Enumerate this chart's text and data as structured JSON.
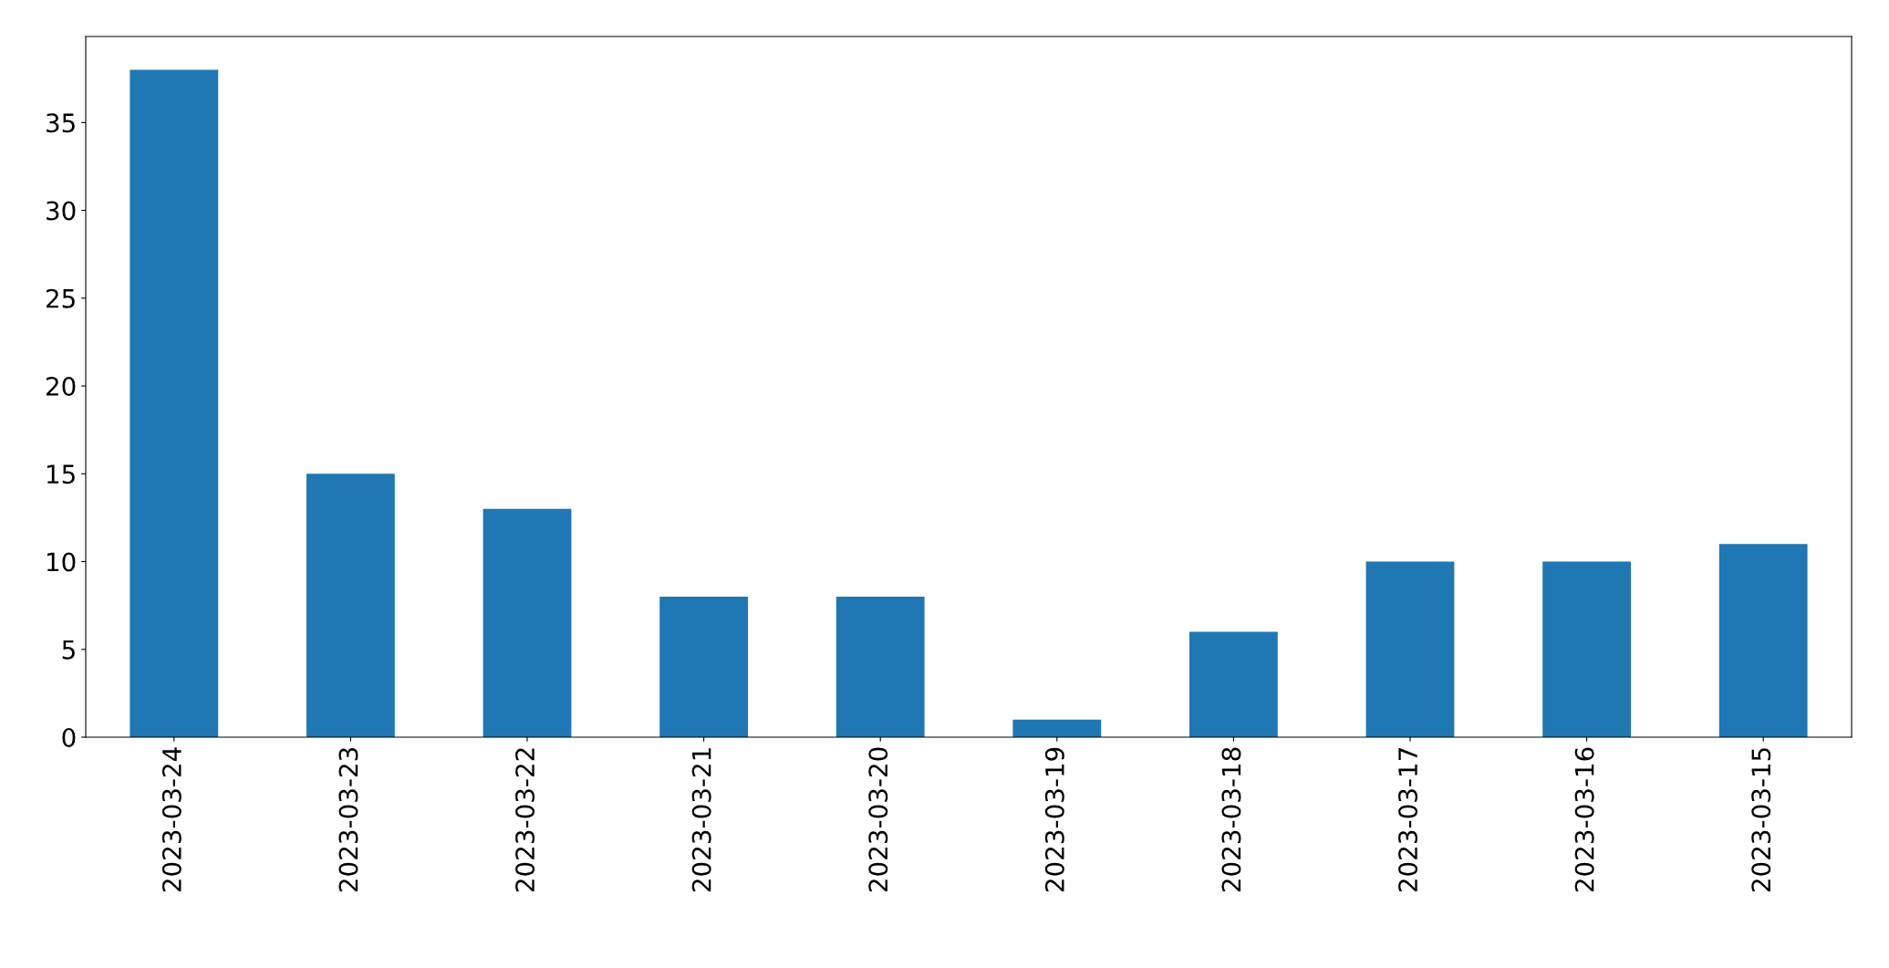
{
  "chart_data": {
    "type": "bar",
    "categories": [
      "2023-03-24",
      "2023-03-23",
      "2023-03-22",
      "2023-03-21",
      "2023-03-20",
      "2023-03-19",
      "2023-03-18",
      "2023-03-17",
      "2023-03-16",
      "2023-03-15"
    ],
    "values": [
      38,
      15,
      13,
      8,
      8,
      1,
      6,
      10,
      10,
      11
    ],
    "color": "#1f77b4",
    "ylim": [
      0,
      39.9
    ],
    "yticks": [
      0,
      5,
      10,
      15,
      20,
      25,
      30,
      35
    ],
    "grid": false,
    "legend": false
  }
}
